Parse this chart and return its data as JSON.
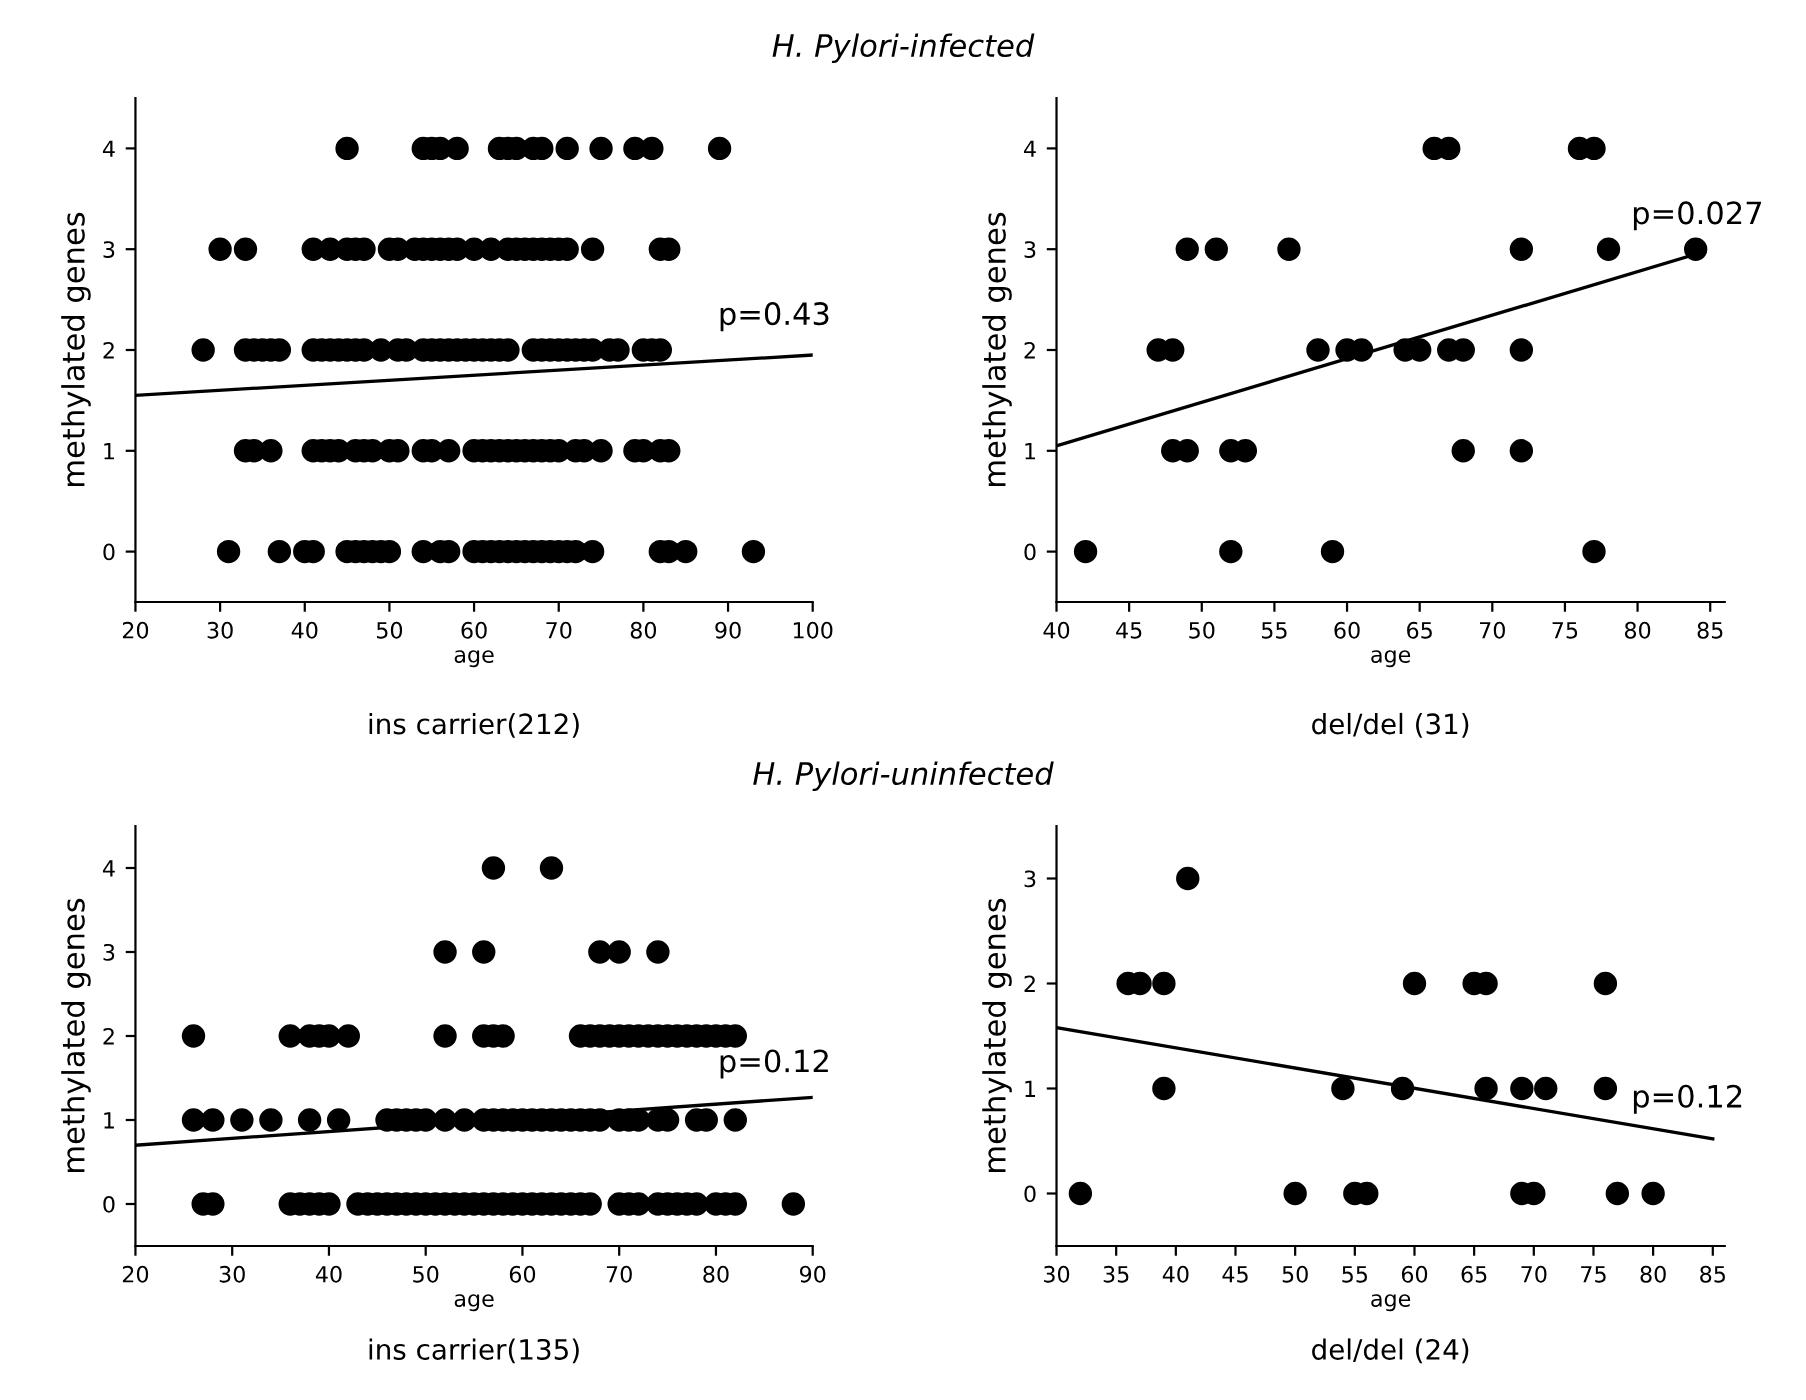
{
  "chart_data": [
    {
      "type": "scatter",
      "title": "H. Pylori-infected",
      "subtitle": "ins carrier(212)",
      "xlabel": "age",
      "ylabel": "methylated genes",
      "xlim": [
        20,
        100
      ],
      "ylim": [
        -0.5,
        4.5
      ],
      "xticks": [
        20,
        30,
        40,
        50,
        60,
        70,
        80,
        90,
        100
      ],
      "yticks": [
        0,
        1,
        2,
        3,
        4
      ],
      "grid": false,
      "annotations": [
        "p=0.43"
      ],
      "series": [
        {
          "marker": "circle",
          "color": "#000000",
          "x": [
            45,
            54,
            55,
            56,
            58,
            63,
            64,
            65,
            67,
            68,
            71,
            75,
            79,
            81,
            89,
            30,
            33,
            41,
            43,
            45,
            46,
            47,
            50,
            51,
            53,
            54,
            55,
            56,
            57,
            58,
            60,
            62,
            64,
            65,
            66,
            67,
            68,
            69,
            70,
            71,
            74,
            82,
            83,
            28,
            33,
            34,
            35,
            36,
            37,
            41,
            42,
            43,
            44,
            45,
            46,
            47,
            49,
            51,
            52,
            54,
            55,
            56,
            57,
            58,
            59,
            60,
            61,
            62,
            63,
            64,
            67,
            68,
            69,
            70,
            71,
            72,
            73,
            74,
            76,
            77,
            80,
            81,
            82,
            33,
            34,
            36,
            41,
            42,
            43,
            44,
            46,
            47,
            48,
            50,
            51,
            54,
            55,
            57,
            60,
            61,
            62,
            63,
            64,
            65,
            66,
            67,
            68,
            69,
            70,
            72,
            73,
            75,
            79,
            80,
            82,
            83,
            31,
            37,
            40,
            41,
            45,
            46,
            47,
            48,
            49,
            50,
            54,
            56,
            57,
            60,
            61,
            62,
            63,
            64,
            65,
            66,
            67,
            68,
            69,
            70,
            71,
            72,
            74,
            82,
            83,
            85,
            93
          ],
          "values": [
            4,
            4,
            4,
            4,
            4,
            4,
            4,
            4,
            4,
            4,
            4,
            4,
            4,
            4,
            4,
            3,
            3,
            3,
            3,
            3,
            3,
            3,
            3,
            3,
            3,
            3,
            3,
            3,
            3,
            3,
            3,
            3,
            3,
            3,
            3,
            3,
            3,
            3,
            3,
            3,
            3,
            3,
            3,
            2,
            2,
            2,
            2,
            2,
            2,
            2,
            2,
            2,
            2,
            2,
            2,
            2,
            2,
            2,
            2,
            2,
            2,
            2,
            2,
            2,
            2,
            2,
            2,
            2,
            2,
            2,
            2,
            2,
            2,
            2,
            2,
            2,
            2,
            2,
            2,
            2,
            2,
            2,
            2,
            1,
            1,
            1,
            1,
            1,
            1,
            1,
            1,
            1,
            1,
            1,
            1,
            1,
            1,
            1,
            1,
            1,
            1,
            1,
            1,
            1,
            1,
            1,
            1,
            1,
            1,
            1,
            1,
            1,
            1,
            1,
            1,
            1,
            0,
            0,
            0,
            0,
            0,
            0,
            0,
            0,
            0,
            0,
            0,
            0,
            0,
            0,
            0,
            0,
            0,
            0,
            0,
            0,
            0,
            0,
            0,
            0,
            0,
            0,
            0,
            0,
            0,
            0,
            0
          ]
        },
        {
          "type": "line",
          "color": "#000000",
          "x": [
            20,
            100
          ],
          "values": [
            1.55,
            1.95
          ]
        }
      ]
    },
    {
      "type": "scatter",
      "subtitle": "del/del (31)",
      "xlabel": "age",
      "ylabel": "methylated genes",
      "xlim": [
        40,
        86
      ],
      "ylim": [
        -0.5,
        4.5
      ],
      "xticks": [
        40,
        45,
        50,
        55,
        60,
        65,
        70,
        75,
        80,
        85
      ],
      "yticks": [
        0,
        1,
        2,
        3,
        4
      ],
      "grid": false,
      "annotations": [
        "p=0.027"
      ],
      "series": [
        {
          "marker": "circle",
          "color": "#000000",
          "x": [
            66,
            67,
            76,
            77,
            49,
            51,
            56,
            72,
            78,
            84,
            47,
            48,
            58,
            60,
            61,
            64,
            65,
            67,
            68,
            72,
            48,
            49,
            52,
            53,
            68,
            72,
            42,
            52,
            59,
            77
          ],
          "values": [
            4,
            4,
            4,
            4,
            3,
            3,
            3,
            3,
            3,
            3,
            2,
            2,
            2,
            2,
            2,
            2,
            2,
            2,
            2,
            2,
            1,
            1,
            1,
            1,
            1,
            1,
            0,
            0,
            0,
            0
          ]
        },
        {
          "type": "line",
          "color": "#000000",
          "x": [
            40,
            84
          ],
          "values": [
            1.05,
            2.95
          ]
        }
      ]
    },
    {
      "type": "scatter",
      "title": "H. Pylori-uninfected",
      "subtitle": "ins carrier(135)",
      "xlabel": "age",
      "ylabel": "methylated genes",
      "xlim": [
        20,
        90
      ],
      "ylim": [
        -0.5,
        4.5
      ],
      "xticks": [
        20,
        30,
        40,
        50,
        60,
        70,
        80,
        90
      ],
      "yticks": [
        0,
        1,
        2,
        3,
        4
      ],
      "grid": false,
      "annotations": [
        "p=0.12"
      ],
      "series": [
        {
          "marker": "circle",
          "color": "#000000",
          "x": [
            57,
            63,
            52,
            56,
            68,
            70,
            74,
            26,
            36,
            38,
            39,
            40,
            42,
            52,
            56,
            57,
            58,
            66,
            67,
            68,
            69,
            70,
            71,
            72,
            73,
            74,
            75,
            76,
            77,
            78,
            79,
            80,
            81,
            82,
            26,
            28,
            31,
            34,
            38,
            41,
            46,
            47,
            48,
            49,
            50,
            52,
            54,
            56,
            57,
            58,
            59,
            60,
            61,
            62,
            63,
            64,
            65,
            66,
            67,
            68,
            70,
            71,
            72,
            74,
            75,
            78,
            79,
            82,
            27,
            28,
            36,
            37,
            38,
            39,
            40,
            43,
            44,
            45,
            46,
            47,
            48,
            49,
            50,
            51,
            52,
            53,
            54,
            55,
            56,
            57,
            58,
            59,
            60,
            61,
            62,
            63,
            64,
            65,
            66,
            67,
            70,
            71,
            72,
            74,
            75,
            76,
            77,
            78,
            80,
            81,
            82,
            88
          ],
          "values": [
            4,
            4,
            3,
            3,
            3,
            3,
            3,
            2,
            2,
            2,
            2,
            2,
            2,
            2,
            2,
            2,
            2,
            2,
            2,
            2,
            2,
            2,
            2,
            2,
            2,
            2,
            2,
            2,
            2,
            2,
            2,
            2,
            2,
            2,
            1,
            1,
            1,
            1,
            1,
            1,
            1,
            1,
            1,
            1,
            1,
            1,
            1,
            1,
            1,
            1,
            1,
            1,
            1,
            1,
            1,
            1,
            1,
            1,
            1,
            1,
            1,
            1,
            1,
            1,
            1,
            1,
            1,
            1,
            0,
            0,
            0,
            0,
            0,
            0,
            0,
            0,
            0,
            0,
            0,
            0,
            0,
            0,
            0,
            0,
            0,
            0,
            0,
            0,
            0,
            0,
            0,
            0,
            0,
            0,
            0,
            0,
            0,
            0,
            0,
            0,
            0,
            0,
            0,
            0,
            0,
            0,
            0,
            0,
            0,
            0,
            0,
            0
          ]
        },
        {
          "type": "line",
          "color": "#000000",
          "x": [
            20,
            90
          ],
          "values": [
            0.7,
            1.27
          ]
        }
      ]
    },
    {
      "type": "scatter",
      "subtitle": "del/del (24)",
      "xlabel": "age",
      "ylabel": "methylated genes",
      "xlim": [
        30,
        86
      ],
      "ylim": [
        -0.5,
        3.5
      ],
      "xticks": [
        30,
        35,
        40,
        45,
        50,
        55,
        60,
        65,
        70,
        75,
        80,
        85
      ],
      "yticks": [
        0,
        1,
        2,
        3
      ],
      "grid": false,
      "annotations": [
        "p=0.12"
      ],
      "series": [
        {
          "marker": "circle",
          "color": "#000000",
          "x": [
            41,
            36,
            37,
            39,
            60,
            65,
            66,
            76,
            39,
            54,
            59,
            66,
            69,
            71,
            76,
            32,
            50,
            55,
            56,
            69,
            70,
            77,
            80
          ],
          "values": [
            3,
            2,
            2,
            2,
            2,
            2,
            2,
            2,
            1,
            1,
            1,
            1,
            1,
            1,
            1,
            0,
            0,
            0,
            0,
            0,
            0,
            0,
            0
          ]
        },
        {
          "type": "line",
          "color": "#000000",
          "x": [
            30,
            85
          ],
          "values": [
            1.58,
            0.52
          ]
        }
      ]
    }
  ]
}
